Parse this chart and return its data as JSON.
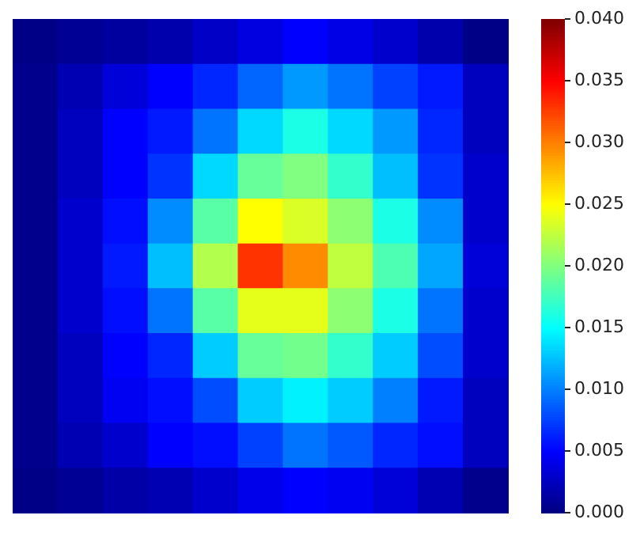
{
  "chart_data": {
    "type": "heatmap",
    "categories": [
      null,
      null,
      null,
      null,
      null,
      null,
      null,
      null,
      null,
      null,
      null
    ],
    "y_categories": [
      null,
      null,
      null,
      null,
      null,
      null,
      null,
      null,
      null,
      null,
      null
    ],
    "cells": [
      [
        0.0003,
        0.0008,
        0.0012,
        0.0018,
        0.0028,
        0.0038,
        0.005,
        0.004,
        0.003,
        0.0018,
        0.0003
      ],
      [
        0.0005,
        0.002,
        0.0035,
        0.005,
        0.0065,
        0.009,
        0.011,
        0.0095,
        0.0075,
        0.006,
        0.0025
      ],
      [
        0.0005,
        0.0025,
        0.005,
        0.006,
        0.0095,
        0.0135,
        0.016,
        0.0135,
        0.011,
        0.0065,
        0.0025
      ],
      [
        0.0005,
        0.0025,
        0.005,
        0.007,
        0.0135,
        0.019,
        0.02,
        0.017,
        0.0125,
        0.007,
        0.003
      ],
      [
        0.0005,
        0.003,
        0.0055,
        0.0105,
        0.0185,
        0.025,
        0.0235,
        0.0205,
        0.016,
        0.0105,
        0.003
      ],
      [
        0.0005,
        0.003,
        0.006,
        0.0125,
        0.022,
        0.033,
        0.0295,
        0.0225,
        0.018,
        0.0115,
        0.0035
      ],
      [
        0.0005,
        0.003,
        0.0055,
        0.0095,
        0.0185,
        0.024,
        0.024,
        0.0205,
        0.016,
        0.0095,
        0.003
      ],
      [
        0.0005,
        0.0025,
        0.005,
        0.0065,
        0.013,
        0.019,
        0.0195,
        0.017,
        0.013,
        0.008,
        0.003
      ],
      [
        0.0005,
        0.0025,
        0.0045,
        0.0055,
        0.008,
        0.013,
        0.0145,
        0.013,
        0.01,
        0.006,
        0.0025
      ],
      [
        0.0005,
        0.002,
        0.003,
        0.005,
        0.0055,
        0.0075,
        0.0095,
        0.0085,
        0.0065,
        0.0055,
        0.0025
      ],
      [
        0.0003,
        0.0008,
        0.0015,
        0.002,
        0.003,
        0.0042,
        0.005,
        0.0045,
        0.0035,
        0.002,
        0.0005
      ]
    ],
    "clim": [
      0,
      0.04
    ],
    "cticks": [
      {
        "value": 0,
        "label": "0.000"
      },
      {
        "value": 0.005,
        "label": "0.005"
      },
      {
        "value": 0.01,
        "label": "0.010"
      },
      {
        "value": 0.015,
        "label": "0.015"
      },
      {
        "value": 0.02,
        "label": "0.020"
      },
      {
        "value": 0.025,
        "label": "0.025"
      },
      {
        "value": 0.03,
        "label": "0.030"
      },
      {
        "value": 0.035,
        "label": "0.035"
      },
      {
        "value": 0.04,
        "label": "0.040"
      }
    ],
    "tick_labels": false
  }
}
